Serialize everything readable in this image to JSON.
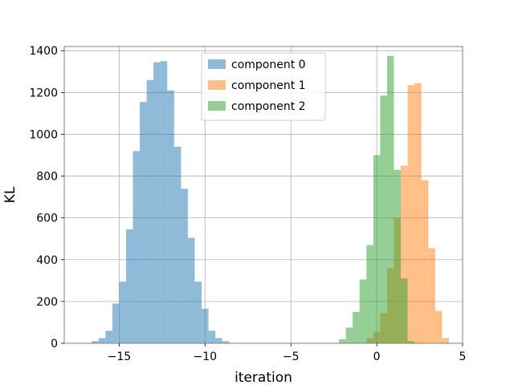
{
  "chart_data": {
    "type": "histogram",
    "xlabel": "iteration",
    "ylabel": "KL",
    "xlim": [
      -18.2,
      5.0
    ],
    "ylim": [
      0,
      1420
    ],
    "xticks": [
      -15,
      -10,
      -5,
      0,
      5
    ],
    "xtick_labels": [
      "−15",
      "−10",
      "−5",
      "0",
      "5"
    ],
    "yticks": [
      0,
      200,
      400,
      600,
      800,
      1000,
      1200,
      1400
    ],
    "ytick_labels": [
      "0",
      "200",
      "400",
      "600",
      "800",
      "1000",
      "1200",
      "1400"
    ],
    "grid": true,
    "legend_position": "upper center",
    "series": [
      {
        "name": "component 0",
        "color": "#1f77b4",
        "alpha": 0.5,
        "bin_edges": [
          -17.0,
          -16.6,
          -16.2,
          -15.8,
          -15.4,
          -15.0,
          -14.6,
          -14.2,
          -13.8,
          -13.4,
          -13.0,
          -12.6,
          -12.2,
          -11.8,
          -11.4,
          -11.0,
          -10.6,
          -10.2,
          -9.8,
          -9.4,
          -9.0,
          -8.6,
          -8.2,
          -7.8,
          -7.4
        ],
        "counts": [
          2,
          10,
          25,
          60,
          190,
          295,
          545,
          920,
          1155,
          1260,
          1345,
          1350,
          1210,
          940,
          740,
          505,
          295,
          165,
          60,
          25,
          10,
          2,
          1,
          0
        ]
      },
      {
        "name": "component 1",
        "color": "#ff7f0e",
        "alpha": 0.5,
        "bin_edges": [
          -0.6,
          -0.2,
          0.2,
          0.6,
          1.0,
          1.4,
          1.8,
          2.2,
          2.6,
          3.0,
          3.4,
          3.8,
          4.2
        ],
        "counts": [
          25,
          55,
          145,
          360,
          600,
          850,
          1235,
          1245,
          780,
          455,
          155,
          25
        ]
      },
      {
        "name": "component 2",
        "color": "#2ca02c",
        "alpha": 0.5,
        "bin_edges": [
          -2.2,
          -1.8,
          -1.4,
          -1.0,
          -0.6,
          -0.2,
          0.2,
          0.6,
          1.0,
          1.4,
          1.8,
          2.2
        ],
        "counts": [
          20,
          75,
          150,
          305,
          470,
          900,
          1185,
          1375,
          830,
          310,
          10
        ]
      }
    ]
  }
}
